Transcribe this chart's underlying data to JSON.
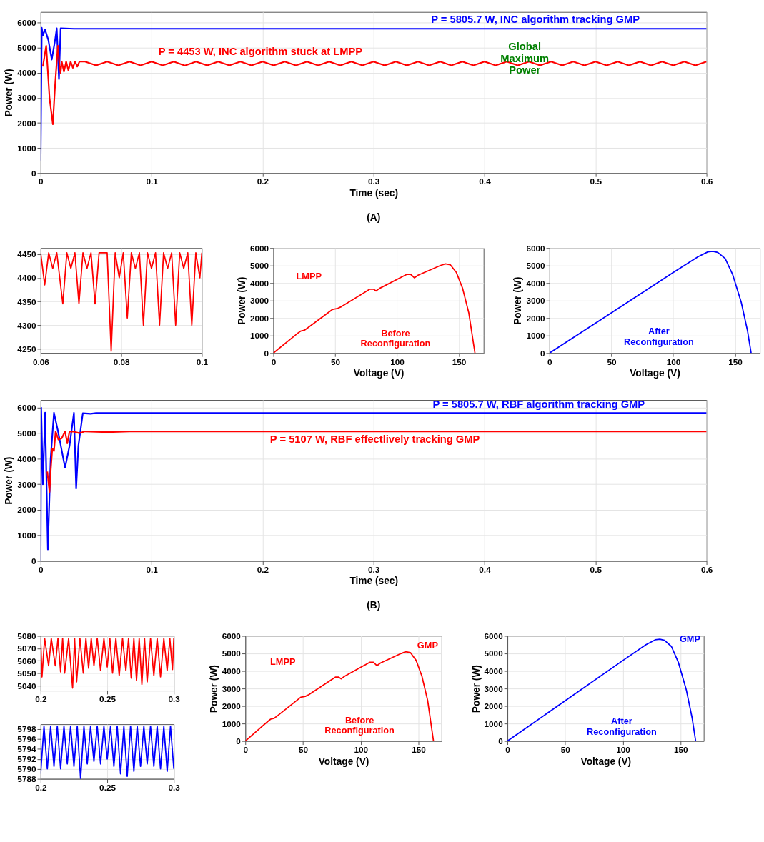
{
  "chart_data": [
    {
      "type": "line",
      "xlabel": "Time (sec)",
      "ylabel": "Power (W)",
      "xlim": [
        0,
        0.6
      ],
      "xticks": [
        0,
        0.1,
        0.2,
        0.3,
        0.4,
        0.5,
        0.6
      ],
      "ylim": [
        0,
        6430
      ],
      "yticks": [
        0,
        1000,
        2000,
        3000,
        4000,
        5000,
        6000
      ],
      "grid": true,
      "annotations": [
        "P = 5805.7 W, INC algorithm tracking GMP",
        "P = 4453 W, INC algorithm stuck at LMPP",
        "Global Maximum Power",
        "(A)"
      ],
      "series": [
        {
          "color": "#0000ff",
          "x": [
            0,
            0.001,
            0.002,
            0.004,
            0.007,
            0.01,
            0.013,
            0.0145,
            0.0165,
            0.018,
            0.03,
            0.1,
            0.2,
            0.3,
            0.4,
            0.5,
            0.6
          ],
          "values": [
            500,
            5800,
            5500,
            5720,
            5300,
            4530,
            5300,
            5780,
            3750,
            5780,
            5760,
            5760,
            5760,
            5760,
            5760,
            5760,
            5760
          ]
        },
        {
          "color": "#ff0000",
          "x": [
            0.002,
            0.005,
            0.008,
            0.011,
            0.013,
            0.0155,
            0.017,
            0.018,
            0.019,
            0.021,
            0.023,
            0.025,
            0.027,
            0.029,
            0.031,
            0.033,
            0.035,
            0.04,
            0.05,
            0.06,
            0.07,
            0.08,
            0.09,
            0.1,
            0.11,
            0.12,
            0.13,
            0.14,
            0.15,
            0.16,
            0.17,
            0.18,
            0.19,
            0.2,
            0.21,
            0.22,
            0.23,
            0.24,
            0.25,
            0.26,
            0.27,
            0.28,
            0.29,
            0.3,
            0.31,
            0.32,
            0.33,
            0.34,
            0.35,
            0.36,
            0.37,
            0.38,
            0.39,
            0.4,
            0.41,
            0.42,
            0.43,
            0.44,
            0.45,
            0.46,
            0.47,
            0.48,
            0.49,
            0.5,
            0.51,
            0.52,
            0.53,
            0.54,
            0.55,
            0.56,
            0.57,
            0.58,
            0.59,
            0.6
          ],
          "values": [
            4250,
            5080,
            3000,
            1950,
            3500,
            5080,
            4300,
            4000,
            4450,
            4050,
            4450,
            4100,
            4450,
            4200,
            4450,
            4250,
            4450,
            4450,
            4300,
            4450,
            4300,
            4450,
            4300,
            4450,
            4300,
            4450,
            4290,
            4450,
            4300,
            4450,
            4300,
            4450,
            4300,
            4450,
            4300,
            4450,
            4300,
            4450,
            4300,
            4450,
            4300,
            4450,
            4300,
            4450,
            4300,
            4450,
            4300,
            4450,
            4300,
            4450,
            4300,
            4450,
            4300,
            4450,
            4300,
            4450,
            4300,
            4450,
            4300,
            4450,
            4300,
            4450,
            4300,
            4450,
            4300,
            4450,
            4300,
            4450,
            4300,
            4450,
            4300,
            4450,
            4300,
            4450
          ]
        }
      ]
    },
    {
      "type": "line",
      "xlim": [
        0.06,
        0.1
      ],
      "xticks": [
        0.06,
        0.08,
        0.1
      ],
      "ylim": [
        4241,
        4463
      ],
      "yticks": [
        4250,
        4300,
        4350,
        4400,
        4450
      ],
      "grid": true,
      "series": [
        {
          "color": "#ff0000",
          "x": [
            0.06,
            0.061,
            0.062,
            0.063,
            0.064,
            0.0655,
            0.0665,
            0.0675,
            0.0685,
            0.0695,
            0.0705,
            0.0715,
            0.0725,
            0.0735,
            0.0745,
            0.0765,
            0.0775,
            0.0785,
            0.0795,
            0.0805,
            0.0815,
            0.0825,
            0.0835,
            0.0845,
            0.0855,
            0.0865,
            0.0875,
            0.0885,
            0.0895,
            0.0905,
            0.0915,
            0.0925,
            0.0935,
            0.0945,
            0.0955,
            0.0965,
            0.0975,
            0.0985,
            0.0995,
            0.1
          ],
          "values": [
            4453,
            4385,
            4453,
            4420,
            4453,
            4345,
            4453,
            4420,
            4453,
            4345,
            4453,
            4420,
            4453,
            4345,
            4453,
            4453,
            4245,
            4453,
            4400,
            4453,
            4315,
            4453,
            4420,
            4453,
            4300,
            4453,
            4420,
            4453,
            4300,
            4453,
            4420,
            4453,
            4300,
            4453,
            4420,
            4453,
            4300,
            4453,
            4400,
            4453
          ]
        }
      ]
    },
    {
      "type": "line",
      "xlabel": "Voltage (V)",
      "ylabel": "Power (W)",
      "xlim": [
        0,
        170
      ],
      "xticks": [
        0,
        50,
        100,
        150
      ],
      "ylim": [
        0,
        6000
      ],
      "yticks": [
        0,
        1000,
        2000,
        3000,
        4000,
        5000,
        6000
      ],
      "grid": true,
      "annotations": [
        "LMPP",
        "Before Reconfiguration"
      ],
      "series": [
        {
          "color": "#ff0000",
          "x": [
            0,
            20,
            22,
            25,
            28,
            48,
            52,
            55,
            78,
            81,
            83,
            86,
            108,
            111,
            114,
            117,
            135,
            139,
            143,
            148,
            153,
            158,
            163
          ],
          "values": [
            0,
            1150,
            1250,
            1300,
            1450,
            2500,
            2550,
            2650,
            3650,
            3650,
            3550,
            3700,
            4500,
            4500,
            4300,
            4450,
            5000,
            5100,
            5050,
            4600,
            3700,
            2300,
            0
          ]
        }
      ]
    },
    {
      "type": "line",
      "xlabel": "Voltage (V)",
      "ylabel": "Power (W)",
      "xlim": [
        0,
        170
      ],
      "xticks": [
        0,
        50,
        100,
        150
      ],
      "ylim": [
        0,
        6000
      ],
      "yticks": [
        0,
        1000,
        2000,
        3000,
        4000,
        5000,
        6000
      ],
      "grid": true,
      "annotations": [
        "After Reconfiguration"
      ],
      "series": [
        {
          "color": "#0000ff",
          "x": [
            0,
            50,
            100,
            120,
            128,
            132,
            136,
            142,
            148,
            155,
            160,
            163
          ],
          "values": [
            0,
            2300,
            4600,
            5500,
            5780,
            5810,
            5750,
            5400,
            4500,
            2900,
            1300,
            0
          ]
        }
      ]
    },
    {
      "type": "line",
      "xlabel": "Time (sec)",
      "ylabel": "Power (W)",
      "xlim": [
        0,
        0.6
      ],
      "xticks": [
        0,
        0.1,
        0.2,
        0.3,
        0.4,
        0.5,
        0.6
      ],
      "ylim": [
        0,
        6300
      ],
      "yticks": [
        0,
        1000,
        2000,
        3000,
        4000,
        5000,
        6000
      ],
      "grid": true,
      "annotations": [
        "P = 5805.7 W, RBF algorithm tracking GMP",
        "P = 5107 W, RBF  effectlively tracking GMP",
        "(B)"
      ],
      "series": [
        {
          "color": "#0000ff",
          "x": [
            0,
            0.0005,
            0.002,
            0.004,
            0.0065,
            0.009,
            0.012,
            0.016,
            0.022,
            0.026,
            0.03,
            0.032,
            0.034,
            0.038,
            0.045,
            0.05,
            0.1,
            0.2,
            0.3,
            0.4,
            0.5,
            0.6
          ],
          "values": [
            0,
            6000,
            3000,
            5800,
            450,
            4000,
            5800,
            5000,
            3650,
            4500,
            5800,
            2830,
            4500,
            5780,
            5760,
            5790,
            5790,
            5790,
            5790,
            5790,
            5790,
            5790
          ]
        },
        {
          "color": "#ff0000",
          "x": [
            0.006,
            0.008,
            0.009,
            0.0105,
            0.012,
            0.0135,
            0.016,
            0.019,
            0.022,
            0.024,
            0.026,
            0.03,
            0.035,
            0.04,
            0.06,
            0.08,
            0.1,
            0.2,
            0.3,
            0.4,
            0.5,
            0.6
          ],
          "values": [
            3500,
            2700,
            3500,
            4400,
            4300,
            5070,
            4750,
            4800,
            5070,
            4600,
            5070,
            5060,
            5000,
            5070,
            5040,
            5070,
            5070,
            5070,
            5070,
            5070,
            5070,
            5070
          ]
        }
      ]
    },
    {
      "type": "line",
      "xlim": [
        0.2,
        0.3
      ],
      "xticks": [
        0.2,
        0.25,
        0.3
      ],
      "ylim": [
        5036,
        5080
      ],
      "yticks": [
        5040,
        5050,
        5060,
        5070,
        5080
      ],
      "grid": true,
      "series": [
        {
          "color": "#ff0000",
          "x": [
            0.2,
            0.201,
            0.203,
            0.206,
            0.208,
            0.211,
            0.213,
            0.215,
            0.2165,
            0.218,
            0.221,
            0.224,
            0.2255,
            0.227,
            0.2295,
            0.232,
            0.234,
            0.236,
            0.238,
            0.24,
            0.2425,
            0.245,
            0.2475,
            0.25,
            0.252,
            0.254,
            0.2565,
            0.259,
            0.2615,
            0.264,
            0.266,
            0.268,
            0.27,
            0.272,
            0.274,
            0.276,
            0.278,
            0.28,
            0.2825,
            0.285,
            0.2875,
            0.29,
            0.2925,
            0.295,
            0.297,
            0.299,
            0.3
          ],
          "values": [
            5078,
            5047,
            5078,
            5056,
            5078,
            5056,
            5078,
            5051,
            5078,
            5050,
            5078,
            5038,
            5078,
            5043,
            5078,
            5050,
            5078,
            5054,
            5078,
            5056,
            5078,
            5052,
            5078,
            5055,
            5078,
            5050,
            5078,
            5048,
            5078,
            5052,
            5078,
            5046,
            5078,
            5044,
            5078,
            5041,
            5078,
            5043,
            5078,
            5048,
            5078,
            5047,
            5078,
            5052,
            5078,
            5053,
            5078
          ]
        }
      ]
    },
    {
      "type": "line",
      "xlim": [
        0.2,
        0.3
      ],
      "xticks": [
        0.2,
        0.25,
        0.3
      ],
      "ylim": [
        5788,
        5799
      ],
      "yticks": [
        5788,
        5790,
        5792,
        5794,
        5796,
        5798
      ],
      "grid": true,
      "series": [
        {
          "color": "#0000ff",
          "x": [
            0.2,
            0.2025,
            0.205,
            0.2075,
            0.21,
            0.2125,
            0.215,
            0.2175,
            0.22,
            0.2225,
            0.225,
            0.2275,
            0.23,
            0.2325,
            0.235,
            0.2375,
            0.24,
            0.2425,
            0.245,
            0.2475,
            0.25,
            0.2525,
            0.255,
            0.2575,
            0.26,
            0.2625,
            0.265,
            0.2675,
            0.27,
            0.2725,
            0.275,
            0.2775,
            0.28,
            0.2825,
            0.285,
            0.2875,
            0.29,
            0.2925,
            0.295,
            0.2975,
            0.3
          ],
          "values": [
            5789,
            5798.6,
            5790,
            5798.6,
            5790.5,
            5798.6,
            5790,
            5798.6,
            5791,
            5798.6,
            5790.5,
            5798.6,
            5788,
            5798.6,
            5791,
            5798.6,
            5791.5,
            5798.6,
            5791,
            5798.6,
            5792,
            5798.6,
            5790.5,
            5798.6,
            5789,
            5798.6,
            5788.5,
            5798.6,
            5789.5,
            5798.6,
            5790.5,
            5798.6,
            5791,
            5798.6,
            5790.5,
            5798.6,
            5790,
            5798.6,
            5789.5,
            5798.6,
            5790
          ]
        }
      ]
    },
    {
      "type": "line",
      "xlabel": "Voltage (V)",
      "ylabel": "Power (W)",
      "xlim": [
        0,
        170
      ],
      "xticks": [
        0,
        50,
        100,
        150
      ],
      "ylim": [
        0,
        6000
      ],
      "yticks": [
        0,
        1000,
        2000,
        3000,
        4000,
        5000,
        6000
      ],
      "grid": true,
      "annotations": [
        "LMPP",
        "GMP",
        "Before Reconfiguration"
      ],
      "series": [
        {
          "color": "#ff0000",
          "x": [
            0,
            20,
            22,
            25,
            28,
            48,
            52,
            55,
            78,
            81,
            83,
            86,
            108,
            111,
            114,
            117,
            135,
            139,
            143,
            148,
            153,
            158,
            163
          ],
          "values": [
            0,
            1150,
            1250,
            1300,
            1450,
            2500,
            2550,
            2650,
            3650,
            3650,
            3550,
            3700,
            4500,
            4500,
            4300,
            4450,
            5000,
            5100,
            5050,
            4600,
            3700,
            2300,
            0
          ]
        }
      ]
    },
    {
      "type": "line",
      "xlabel": "Voltage (V)",
      "ylabel": "Power (W)",
      "xlim": [
        0,
        170
      ],
      "xticks": [
        0,
        50,
        100,
        150
      ],
      "ylim": [
        0,
        6000
      ],
      "yticks": [
        0,
        1000,
        2000,
        3000,
        4000,
        5000,
        6000
      ],
      "grid": true,
      "annotations": [
        "GMP",
        "After Reconfiguration"
      ],
      "series": [
        {
          "color": "#0000ff",
          "x": [
            0,
            50,
            100,
            120,
            128,
            132,
            136,
            142,
            148,
            155,
            160,
            163
          ],
          "values": [
            0,
            2300,
            4600,
            5500,
            5780,
            5810,
            5750,
            5400,
            4500,
            2900,
            1300,
            0
          ]
        }
      ]
    }
  ]
}
